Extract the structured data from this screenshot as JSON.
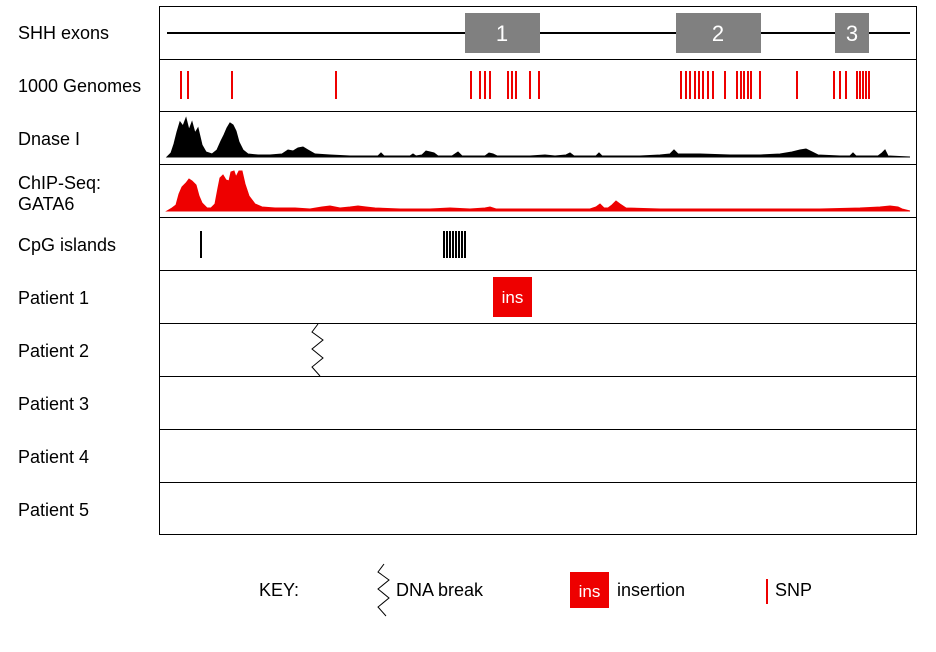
{
  "tracks": {
    "shh_exons": "SHH exons",
    "genomes": "1000 Genomes",
    "dnase": "Dnase I",
    "chip_line1": "ChIP-Seq:",
    "chip_line2": "GATA6",
    "cpg": "CpG islands",
    "patient1": "Patient 1",
    "patient2": "Patient 2",
    "patient3": "Patient 3",
    "patient4": "Patient 4",
    "patient5": "Patient 5"
  },
  "exons": [
    "1",
    "2",
    "3"
  ],
  "insertion_label": "ins",
  "key": {
    "title": "KEY:",
    "dna_break": "DNA break",
    "ins_symbol": "ins",
    "insertion": "insertion",
    "snp": "SNP"
  },
  "colors": {
    "exon": "#808080",
    "snp": "#ee0000",
    "dnase": "#000000",
    "chip": "#ee0000",
    "insertion": "#ee0000",
    "border": "#000000"
  }
}
